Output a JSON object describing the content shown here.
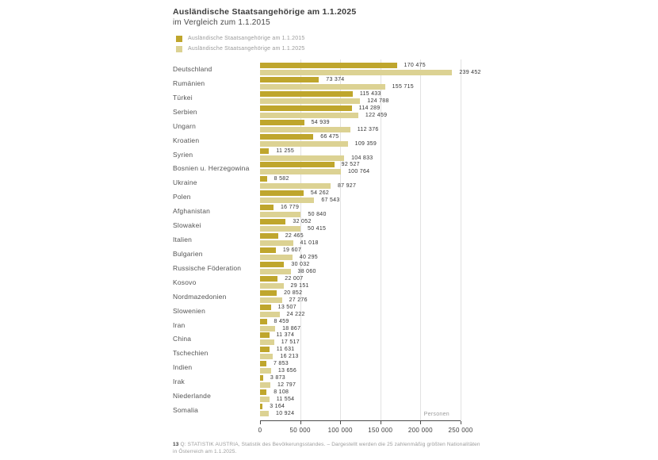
{
  "header": {
    "title": "Ausländische Staatsangehörige am 1.1.2025",
    "subtitle": "im Vergleich zum 1.1.2015"
  },
  "legend": [
    {
      "label": "Ausländische Staatsangehörige am 1.1.2015",
      "color": "#bfa62d"
    },
    {
      "label": "Ausländische Staatsangehörige am 1.1.2025",
      "color": "#dcd293"
    }
  ],
  "chart_data": {
    "type": "bar",
    "orientation": "horizontal",
    "title": "Ausländische Staatsangehörige am 1.1.2025 im Vergleich zum 1.1.2015",
    "xlabel": "Personen",
    "xlim": [
      0,
      250000
    ],
    "xticks": [
      "0",
      "50 000",
      "100 000",
      "150 000",
      "200 000",
      "250 000"
    ],
    "grid": true,
    "legend_position": "top-left",
    "categories": [
      "Deutschland",
      "Rumänien",
      "Türkei",
      "Serbien",
      "Ungarn",
      "Kroatien",
      "Syrien",
      "Bosnien u. Herzegowina",
      "Ukraine",
      "Polen",
      "Afghanistan",
      "Slowakei",
      "Italien",
      "Bulgarien",
      "Russische Föderation",
      "Kosovo",
      "Nordmazedonien",
      "Slowenien",
      "Iran",
      "China",
      "Tschechien",
      "Indien",
      "Irak",
      "Niederlande",
      "Somalia"
    ],
    "series": [
      {
        "name": "Ausländische Staatsangehörige am 1.1.2015",
        "color": "#bfa62d",
        "values": [
          170475,
          73374,
          115433,
          114289,
          54939,
          66475,
          11255,
          92527,
          8582,
          54262,
          16779,
          32052,
          22465,
          19607,
          30032,
          22007,
          20852,
          13507,
          8459,
          11374,
          11631,
          7853,
          3873,
          8108,
          3164
        ]
      },
      {
        "name": "Ausländische Staatsangehörige am 1.1.2025",
        "color": "#dcd293",
        "values": [
          239452,
          155715,
          124788,
          122459,
          112376,
          109359,
          104833,
          100764,
          87927,
          67543,
          50840,
          50415,
          41018,
          40295,
          38060,
          29151,
          27276,
          24222,
          18867,
          17517,
          16213,
          13656,
          12797,
          11554,
          10924
        ]
      }
    ]
  },
  "footnote": {
    "number": "13",
    "text": "Q: STATISTIK AUSTRIA, Statistik des Bevölkerungsstandes. – Dargestellt werden die 25 zahlenmäßig größten Nationalitäten in Österreich am 1.1.2025."
  }
}
